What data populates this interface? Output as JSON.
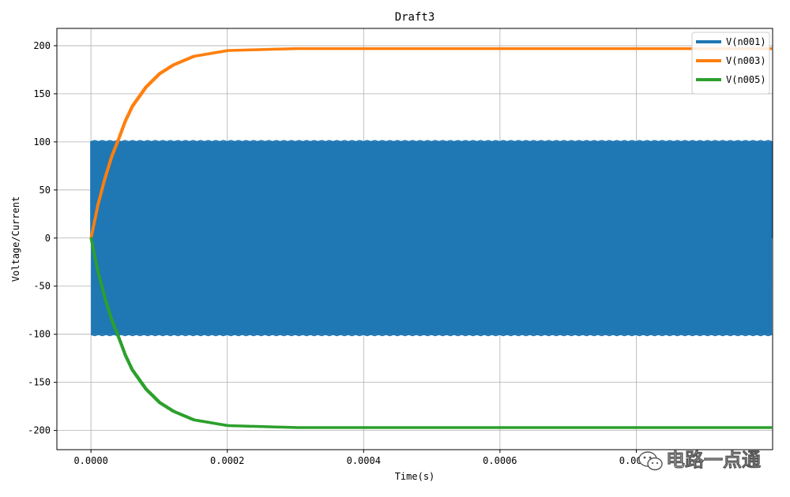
{
  "chart_data": {
    "type": "line",
    "title": "Draft3",
    "xlabel": "Time(s)",
    "ylabel": "Voltage/Current",
    "xlim": [
      -5e-05,
      0.001
    ],
    "ylim": [
      -220,
      218
    ],
    "xticks": [
      0.0,
      0.0002,
      0.0004,
      0.0006,
      0.0008
    ],
    "xtick_labels": [
      "0.0000",
      "0.0002",
      "0.0004",
      "0.0006",
      "0.0008"
    ],
    "yticks": [
      -200,
      -150,
      -100,
      -50,
      0,
      50,
      100,
      150,
      200
    ],
    "ytick_labels": [
      "-200",
      "-150",
      "-100",
      "-50",
      "0",
      "50",
      "100",
      "150",
      "200"
    ],
    "grid": true,
    "legend_position": "top-right",
    "series": [
      {
        "name": "V(n001)",
        "color": "#1f77b4",
        "kind": "square-wave",
        "t_start": 0.0,
        "t_end": 0.000999,
        "amplitude": 100,
        "period": 2e-06,
        "x": [
          0.0,
          0.000999
        ],
        "y_high": 100,
        "y_low": -100
      },
      {
        "name": "V(n003)",
        "color": "#ff7f0e",
        "x": [
          0.0,
          1e-05,
          2e-05,
          3e-05,
          4e-05,
          5e-05,
          6e-05,
          8e-05,
          0.0001,
          0.00012,
          0.00015,
          0.0002,
          0.0003,
          0.0005,
          0.001
        ],
        "y": [
          0,
          35,
          62,
          85,
          103,
          122,
          137,
          157,
          171,
          180,
          189,
          195,
          197,
          197,
          197
        ]
      },
      {
        "name": "V(n005)",
        "color": "#2ca02c",
        "x": [
          0.0,
          1e-05,
          2e-05,
          3e-05,
          4e-05,
          5e-05,
          6e-05,
          8e-05,
          0.0001,
          0.00012,
          0.00015,
          0.0002,
          0.0003,
          0.0005,
          0.001
        ],
        "y": [
          0,
          -35,
          -62,
          -85,
          -103,
          -122,
          -137,
          -157,
          -171,
          -180,
          -189,
          -195,
          -197,
          -197,
          -197
        ]
      }
    ]
  },
  "watermark": {
    "text": "电路一点通",
    "icon": "wechat-icon"
  }
}
